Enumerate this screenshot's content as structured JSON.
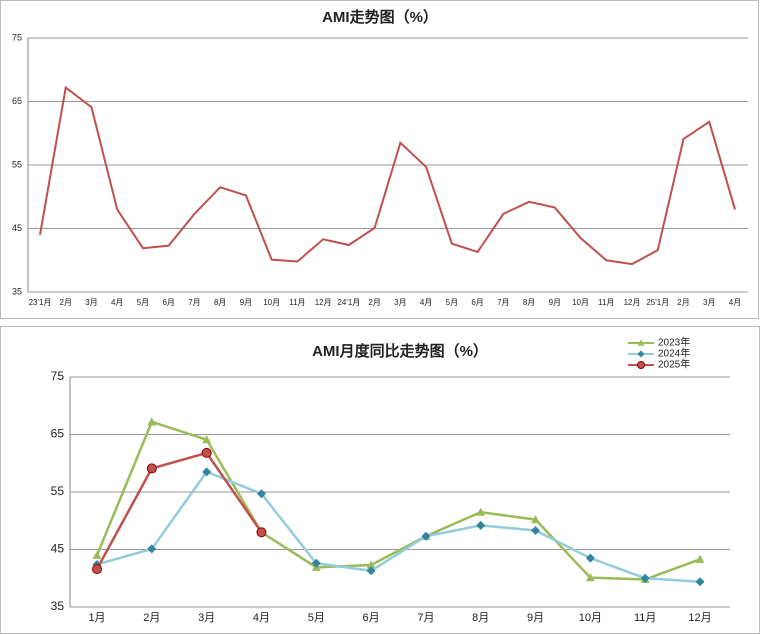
{
  "chart_data": [
    {
      "type": "line",
      "title": "AMI走势图（%）",
      "categories": [
        "23'1月",
        "2月",
        "3月",
        "4月",
        "5月",
        "6月",
        "7月",
        "8月",
        "9月",
        "10月",
        "11月",
        "12月",
        "24'1月",
        "2月",
        "3月",
        "4月",
        "5月",
        "6月",
        "7月",
        "8月",
        "9月",
        "10月",
        "11月",
        "12月",
        "25'1月",
        "2月",
        "3月",
        "4月"
      ],
      "series": [
        {
          "name": "AMI",
          "color": "#c0504d",
          "values": [
            44,
            67.2,
            64.1,
            48,
            41.9,
            42.3,
            47.3,
            51.5,
            50.2,
            40.1,
            39.8,
            43.3,
            42.4,
            45.1,
            58.5,
            54.7,
            42.6,
            41.3,
            47.3,
            49.2,
            48.3,
            43.5,
            40,
            39.4,
            41.6,
            59.1,
            61.8,
            48
          ]
        }
      ],
      "ylim": [
        35,
        75
      ],
      "yticks": [
        35,
        45,
        55,
        65,
        75
      ],
      "grid": true
    },
    {
      "type": "line",
      "title": "AMI月度同比走势图（%）",
      "categories": [
        "1月",
        "2月",
        "3月",
        "4月",
        "5月",
        "6月",
        "7月",
        "8月",
        "9月",
        "10月",
        "11月",
        "12月"
      ],
      "series": [
        {
          "name": "2023年",
          "color": "#9bbb59",
          "marker": "triangle",
          "values": [
            44,
            67.2,
            64.1,
            48,
            41.9,
            42.3,
            47.3,
            51.5,
            50.2,
            40.1,
            39.8,
            43.3
          ]
        },
        {
          "name": "2024年",
          "color": "#4bacc6",
          "marker": "diamond",
          "values": [
            42.4,
            45.1,
            58.5,
            54.7,
            42.6,
            41.3,
            47.3,
            49.2,
            48.3,
            43.5,
            40,
            39.4
          ]
        },
        {
          "name": "2025年",
          "color": "#c0504d",
          "marker": "circle",
          "values": [
            41.6,
            59.1,
            61.8,
            48,
            null,
            null,
            null,
            null,
            null,
            null,
            null,
            null
          ]
        }
      ],
      "ylim": [
        35,
        75
      ],
      "yticks": [
        35,
        45,
        55,
        65,
        75
      ],
      "grid": true,
      "legend": "top-right"
    }
  ]
}
